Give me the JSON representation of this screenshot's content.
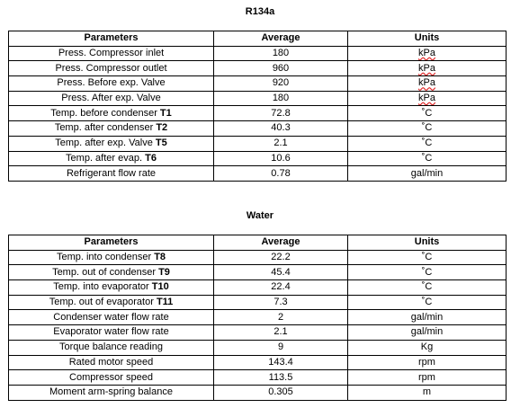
{
  "r134a": {
    "title": "R134a",
    "headers": [
      "Parameters",
      "Average",
      "Units"
    ],
    "rows": [
      {
        "param": "Press. Compressor inlet",
        "tag": "",
        "average": "180",
        "unit": "kPa"
      },
      {
        "param": "Press. Compressor outlet",
        "tag": "",
        "average": "960",
        "unit": "kPa"
      },
      {
        "param": "Press. Before exp. Valve",
        "tag": "",
        "average": "920",
        "unit": "kPa"
      },
      {
        "param": "Press. After exp. Valve",
        "tag": "",
        "average": "180",
        "unit": "kPa"
      },
      {
        "param": "Temp. before condenser ",
        "tag": "T1",
        "average": "72.8",
        "unit": "˚C"
      },
      {
        "param": "Temp. after condenser ",
        "tag": "T2",
        "average": "40.3",
        "unit": "˚C"
      },
      {
        "param": "Temp. after exp. Valve ",
        "tag": "T5",
        "average": "2.1",
        "unit": "˚C"
      },
      {
        "param": "Temp. after evap. ",
        "tag": "T6",
        "average": "10.6",
        "unit": "˚C"
      },
      {
        "param": "Refrigerant flow rate",
        "tag": "",
        "average": "0.78",
        "unit": "gal/min"
      }
    ]
  },
  "water": {
    "title": "Water",
    "headers": [
      "Parameters",
      "Average",
      "Units"
    ],
    "rows": [
      {
        "param": "Temp. into condenser ",
        "tag": "T8",
        "average": "22.2",
        "unit": "˚C"
      },
      {
        "param": "Temp. out of condenser ",
        "tag": "T9",
        "average": "45.4",
        "unit": "˚C"
      },
      {
        "param": "Temp. into evaporator ",
        "tag": "T10",
        "average": "22.4",
        "unit": "˚C"
      },
      {
        "param": "Temp. out of evaporator ",
        "tag": "T11",
        "average": "7.3",
        "unit": "˚C"
      },
      {
        "param": "Condenser water flow rate",
        "tag": "",
        "average": "2",
        "unit": "gal/min"
      },
      {
        "param": "Evaporator water flow rate",
        "tag": "",
        "average": "2.1",
        "unit": "gal/min"
      },
      {
        "param": "Torque balance reading",
        "tag": "",
        "average": "9",
        "unit": "Kg"
      },
      {
        "param": "Rated motor speed",
        "tag": "",
        "average": "143.4",
        "unit": "rpm"
      },
      {
        "param": "Compressor speed",
        "tag": "",
        "average": "113.5",
        "unit": "rpm"
      },
      {
        "param": "Moment arm-spring balance",
        "tag": "",
        "average": "0.305",
        "unit": "m"
      }
    ]
  }
}
